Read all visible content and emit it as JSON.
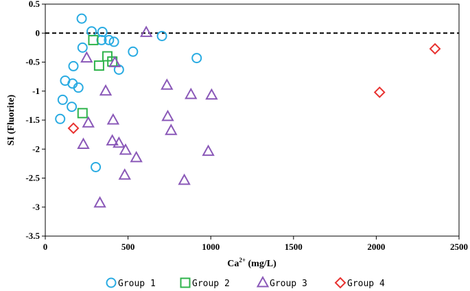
{
  "chart_data": {
    "type": "scatter",
    "title": "",
    "xlabel": "Ca",
    "xlabel_sup": "2+",
    "xlabel_suffix": " (mg/L)",
    "ylabel": "SI (Fluorite)",
    "xlim": [
      0,
      2500
    ],
    "ylim": [
      -3.5,
      0.5
    ],
    "x_ticks": [
      0,
      500,
      1000,
      1500,
      2000,
      2500
    ],
    "x_tick_labels": [
      "0",
      "500",
      "1000",
      "1500",
      "2000",
      "2500"
    ],
    "y_ticks": [
      0.5,
      0,
      -0.5,
      -1,
      -1.5,
      -2,
      -2.5,
      -3,
      -3.5
    ],
    "y_tick_labels": [
      "0.5",
      "0",
      "-0.5",
      "-1",
      "-1.5",
      "-2",
      "-2.5",
      "-3",
      "-3.5"
    ],
    "reference_line": {
      "y": 0,
      "style": "dashed"
    },
    "legend_position": "bottom",
    "series": [
      {
        "name": "Group 1",
        "marker": "circle",
        "color": "#29ABE2",
        "points": [
          {
            "x": 220,
            "y": 0.25
          },
          {
            "x": 280,
            "y": 0.03
          },
          {
            "x": 345,
            "y": 0.02
          },
          {
            "x": 225,
            "y": -0.25
          },
          {
            "x": 340,
            "y": -0.12
          },
          {
            "x": 385,
            "y": -0.12
          },
          {
            "x": 415,
            "y": -0.15
          },
          {
            "x": 530,
            "y": -0.32
          },
          {
            "x": 705,
            "y": -0.05
          },
          {
            "x": 915,
            "y": -0.43
          },
          {
            "x": 170,
            "y": -0.57
          },
          {
            "x": 445,
            "y": -0.63
          },
          {
            "x": 120,
            "y": -0.82
          },
          {
            "x": 165,
            "y": -0.87
          },
          {
            "x": 200,
            "y": -0.94
          },
          {
            "x": 105,
            "y": -1.15
          },
          {
            "x": 160,
            "y": -1.27
          },
          {
            "x": 90,
            "y": -1.48
          },
          {
            "x": 305,
            "y": -2.31
          }
        ]
      },
      {
        "name": "Group 2",
        "marker": "square",
        "color": "#2DB34A",
        "points": [
          {
            "x": 290,
            "y": -0.12
          },
          {
            "x": 375,
            "y": -0.4
          },
          {
            "x": 405,
            "y": -0.49
          },
          {
            "x": 325,
            "y": -0.56
          },
          {
            "x": 225,
            "y": -1.38
          }
        ]
      },
      {
        "name": "Group 3",
        "marker": "triangle",
        "color": "#8A58B8",
        "points": [
          {
            "x": 610,
            "y": 0.01
          },
          {
            "x": 250,
            "y": -0.43
          },
          {
            "x": 420,
            "y": -0.51
          },
          {
            "x": 365,
            "y": -1.0
          },
          {
            "x": 735,
            "y": -0.9
          },
          {
            "x": 880,
            "y": -1.06
          },
          {
            "x": 1005,
            "y": -1.07
          },
          {
            "x": 740,
            "y": -1.44
          },
          {
            "x": 260,
            "y": -1.55
          },
          {
            "x": 410,
            "y": -1.5
          },
          {
            "x": 760,
            "y": -1.68
          },
          {
            "x": 230,
            "y": -1.92
          },
          {
            "x": 405,
            "y": -1.86
          },
          {
            "x": 445,
            "y": -1.9
          },
          {
            "x": 485,
            "y": -2.02
          },
          {
            "x": 985,
            "y": -2.04
          },
          {
            "x": 550,
            "y": -2.15
          },
          {
            "x": 480,
            "y": -2.45
          },
          {
            "x": 840,
            "y": -2.54
          },
          {
            "x": 330,
            "y": -2.93
          }
        ]
      },
      {
        "name": "Group 4",
        "marker": "diamond",
        "color": "#E8312F",
        "points": [
          {
            "x": 2355,
            "y": -0.27
          },
          {
            "x": 2020,
            "y": -1.02
          },
          {
            "x": 170,
            "y": -1.64
          }
        ]
      }
    ]
  }
}
